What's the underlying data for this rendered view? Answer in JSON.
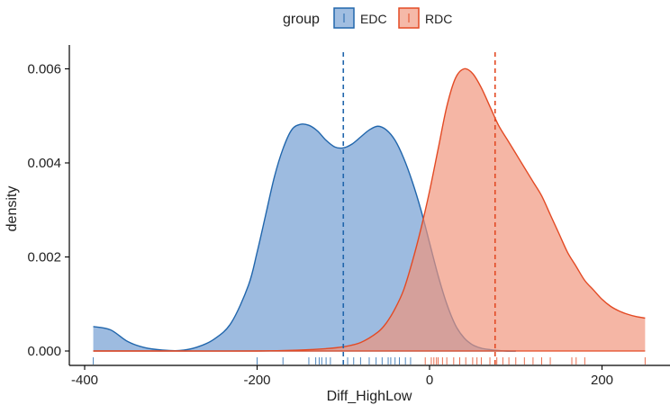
{
  "chart_data": {
    "type": "area",
    "subtype": "density",
    "title": "",
    "xlabel": "Diff_HighLow",
    "ylabel": "density",
    "xlim": [
      -410,
      255
    ],
    "ylim": [
      -0.00015,
      0.0063
    ],
    "x_ticks": [
      -400,
      -200,
      0,
      200
    ],
    "x_tick_labels": [
      "-400",
      "-200",
      "0",
      "200"
    ],
    "y_ticks": [
      0,
      0.002,
      0.004,
      0.006
    ],
    "y_tick_labels": [
      "0.000",
      "0.002",
      "0.004",
      "0.006"
    ],
    "grid": false,
    "legend": {
      "title": "group",
      "position": "top",
      "entries": [
        "EDC",
        "RDC"
      ]
    },
    "series": [
      {
        "name": "EDC",
        "color": "#2166AC",
        "fill": "#6F9BD1",
        "mean": -100,
        "x": [
          -390,
          -370,
          -350,
          -330,
          -310,
          -290,
          -270,
          -250,
          -230,
          -210,
          -200,
          -190,
          -180,
          -170,
          -160,
          -150,
          -140,
          -130,
          -120,
          -110,
          -100,
          -90,
          -80,
          -70,
          -60,
          -50,
          -40,
          -30,
          -20,
          -10,
          0,
          10,
          20,
          30,
          40,
          50,
          60,
          70,
          80,
          90,
          100
        ],
        "density": [
          0.00052,
          0.00045,
          0.0002,
          7e-05,
          2e-05,
          1e-05,
          8e-05,
          0.00025,
          0.0006,
          0.0014,
          0.0021,
          0.0029,
          0.0037,
          0.0043,
          0.0047,
          0.00482,
          0.0048,
          0.00468,
          0.00448,
          0.00434,
          0.00432,
          0.0044,
          0.00455,
          0.0047,
          0.00478,
          0.0047,
          0.00448,
          0.0041,
          0.0036,
          0.003,
          0.0023,
          0.0016,
          0.001,
          0.00055,
          0.00028,
          0.00013,
          6e-05,
          3e-05,
          1e-05,
          0.0,
          0.0
        ],
        "rug": [
          -390,
          -200,
          -170,
          -140,
          -132,
          -128,
          -125,
          -120,
          -115,
          -95,
          -88,
          -80,
          -70,
          -62,
          -55,
          -48,
          -45,
          -40,
          -35,
          -28,
          -22
        ]
      },
      {
        "name": "RDC",
        "color": "#E34A24",
        "fill": "#F0937A",
        "mean": 76,
        "x": [
          -390,
          -300,
          -200,
          -150,
          -120,
          -100,
          -80,
          -60,
          -50,
          -40,
          -30,
          -20,
          -10,
          0,
          10,
          20,
          30,
          40,
          50,
          60,
          70,
          80,
          90,
          100,
          110,
          120,
          130,
          140,
          150,
          160,
          170,
          180,
          190,
          200,
          210,
          220,
          230,
          240,
          250
        ],
        "density": [
          0.0,
          0.0,
          0.0,
          2e-05,
          5e-05,
          9e-05,
          0.00018,
          0.0004,
          0.0006,
          0.0009,
          0.0013,
          0.0019,
          0.0026,
          0.0034,
          0.0043,
          0.0052,
          0.0058,
          0.006,
          0.0059,
          0.0056,
          0.0052,
          0.0048,
          0.0045,
          0.0042,
          0.0039,
          0.0036,
          0.0033,
          0.0029,
          0.0025,
          0.0021,
          0.0018,
          0.0015,
          0.0013,
          0.0011,
          0.00095,
          0.00085,
          0.00078,
          0.00073,
          0.0007
        ],
        "rug": [
          -5,
          2,
          5,
          8,
          10,
          15,
          20,
          28,
          35,
          42,
          50,
          55,
          60,
          70,
          78,
          85,
          92,
          100,
          110,
          120,
          130,
          140,
          165,
          170,
          180,
          250
        ]
      }
    ]
  }
}
